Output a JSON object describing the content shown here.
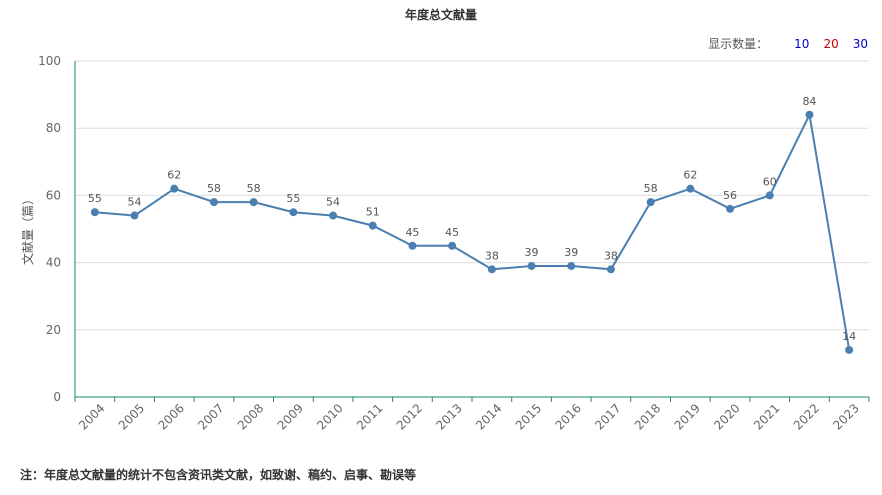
{
  "header": {
    "count_label": "显示数量：",
    "count_options": [
      {
        "label": "10",
        "color": "#0000cc"
      },
      {
        "label": "20",
        "color": "#cc0000"
      },
      {
        "label": "30",
        "color": "#0000cc"
      }
    ]
  },
  "footnote": "注：年度总文献量的统计不包含资讯类文献，如致谢、稿约、启事、勘误等",
  "chart_data": {
    "type": "line",
    "title": "年度总文献量",
    "xlabel": "",
    "ylabel": "文献量（篇）",
    "categories": [
      "2004",
      "2005",
      "2006",
      "2007",
      "2008",
      "2009",
      "2010",
      "2011",
      "2012",
      "2013",
      "2014",
      "2015",
      "2016",
      "2017",
      "2018",
      "2019",
      "2020",
      "2021",
      "2022",
      "2023"
    ],
    "series": [
      {
        "values": [
          55,
          54,
          62,
          58,
          58,
          55,
          54,
          51,
          45,
          45,
          38,
          39,
          39,
          38,
          58,
          62,
          56,
          60,
          84,
          14
        ]
      }
    ],
    "ylim": [
      0,
      100
    ],
    "yticks": [
      0,
      20,
      40,
      60,
      80,
      100
    ],
    "grid": true,
    "line_color": "#4a7fb0",
    "axis_color": "#1a8a6e"
  }
}
